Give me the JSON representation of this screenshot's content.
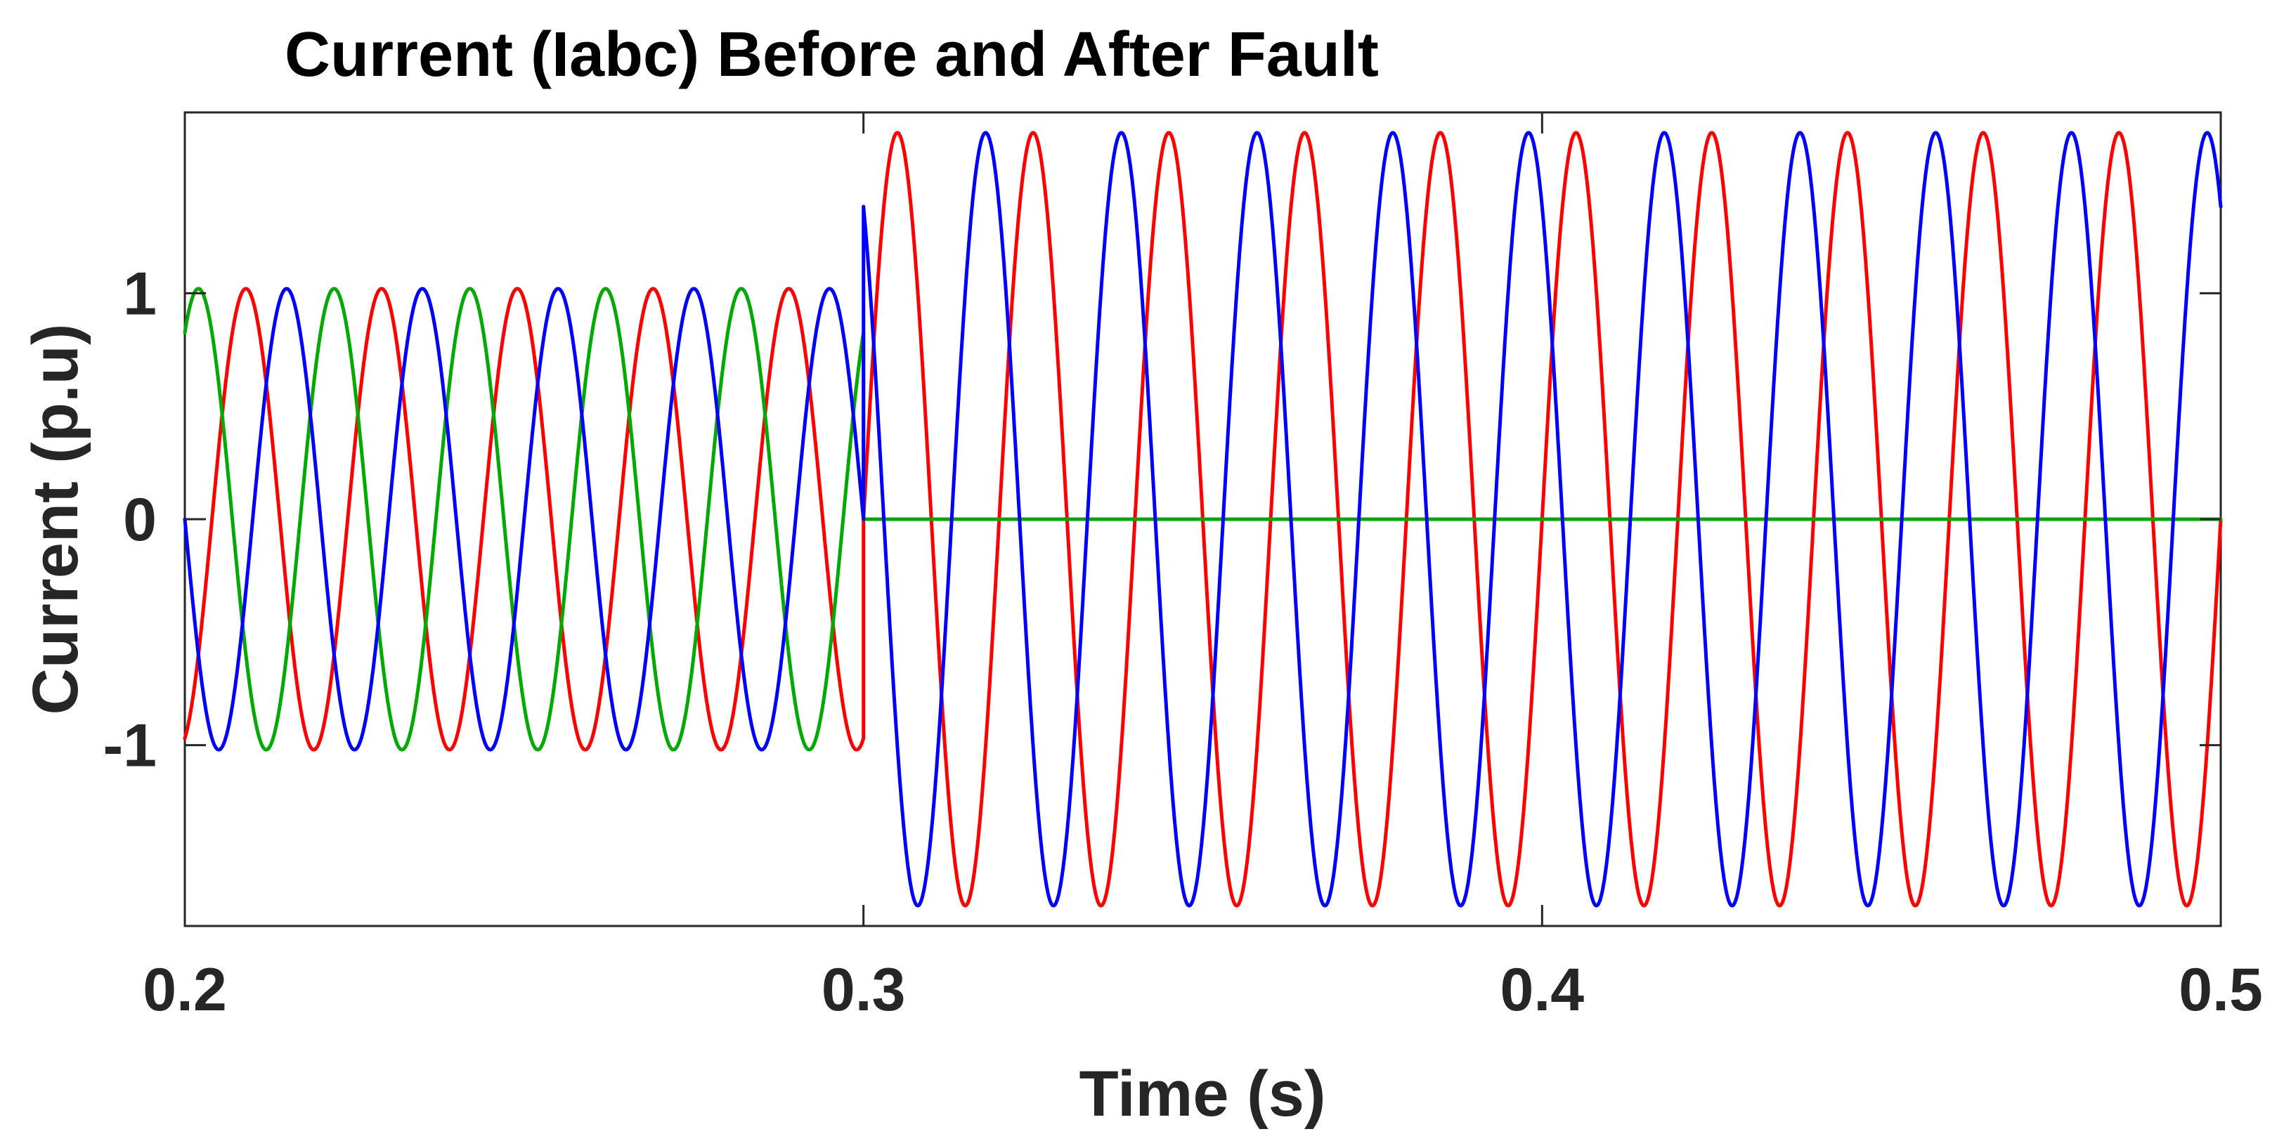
{
  "chart_data": {
    "type": "line",
    "title": "Current (Iabc) Before and After Fault",
    "xlabel": "Time (s)",
    "ylabel": "Current (p.u)",
    "xlim": [
      0.2,
      0.5
    ],
    "ylim": [
      -1.8,
      1.8
    ],
    "xticks": [
      0.2,
      0.3,
      0.4,
      0.5
    ],
    "xtick_labels": [
      "0.2",
      "0.3",
      "0.4",
      "0.5"
    ],
    "yticks": [
      -1,
      0,
      1
    ],
    "ytick_labels": [
      "-1",
      "0",
      "1"
    ],
    "grid": false,
    "legend": "none",
    "fault_time": 0.3,
    "series": [
      {
        "color": "#ff0000",
        "description": "sinusoid, 50 Hz",
        "pre_fault_amplitude": 1.02,
        "pre_fault_first_peak": [
          0.209,
          1.04
        ],
        "post_fault_amplitude": 1.71,
        "post_fault_first_peak": [
          0.325,
          1.7
        ]
      },
      {
        "color": "#00aa00",
        "description": "sinusoid, 50 Hz, zero after fault",
        "pre_fault_amplitude": 1.02,
        "pre_fault_first_peak": [
          0.222,
          1.01
        ],
        "post_fault_value": 0
      },
      {
        "color": "#0000ff",
        "description": "sinusoid, 50 Hz",
        "pre_fault_amplitude": 1.02,
        "pre_fault_first_peak": [
          0.235,
          1.0
        ],
        "post_fault_amplitude": 1.71,
        "post_fault_first_peak": [
          0.318,
          1.71
        ]
      }
    ]
  }
}
